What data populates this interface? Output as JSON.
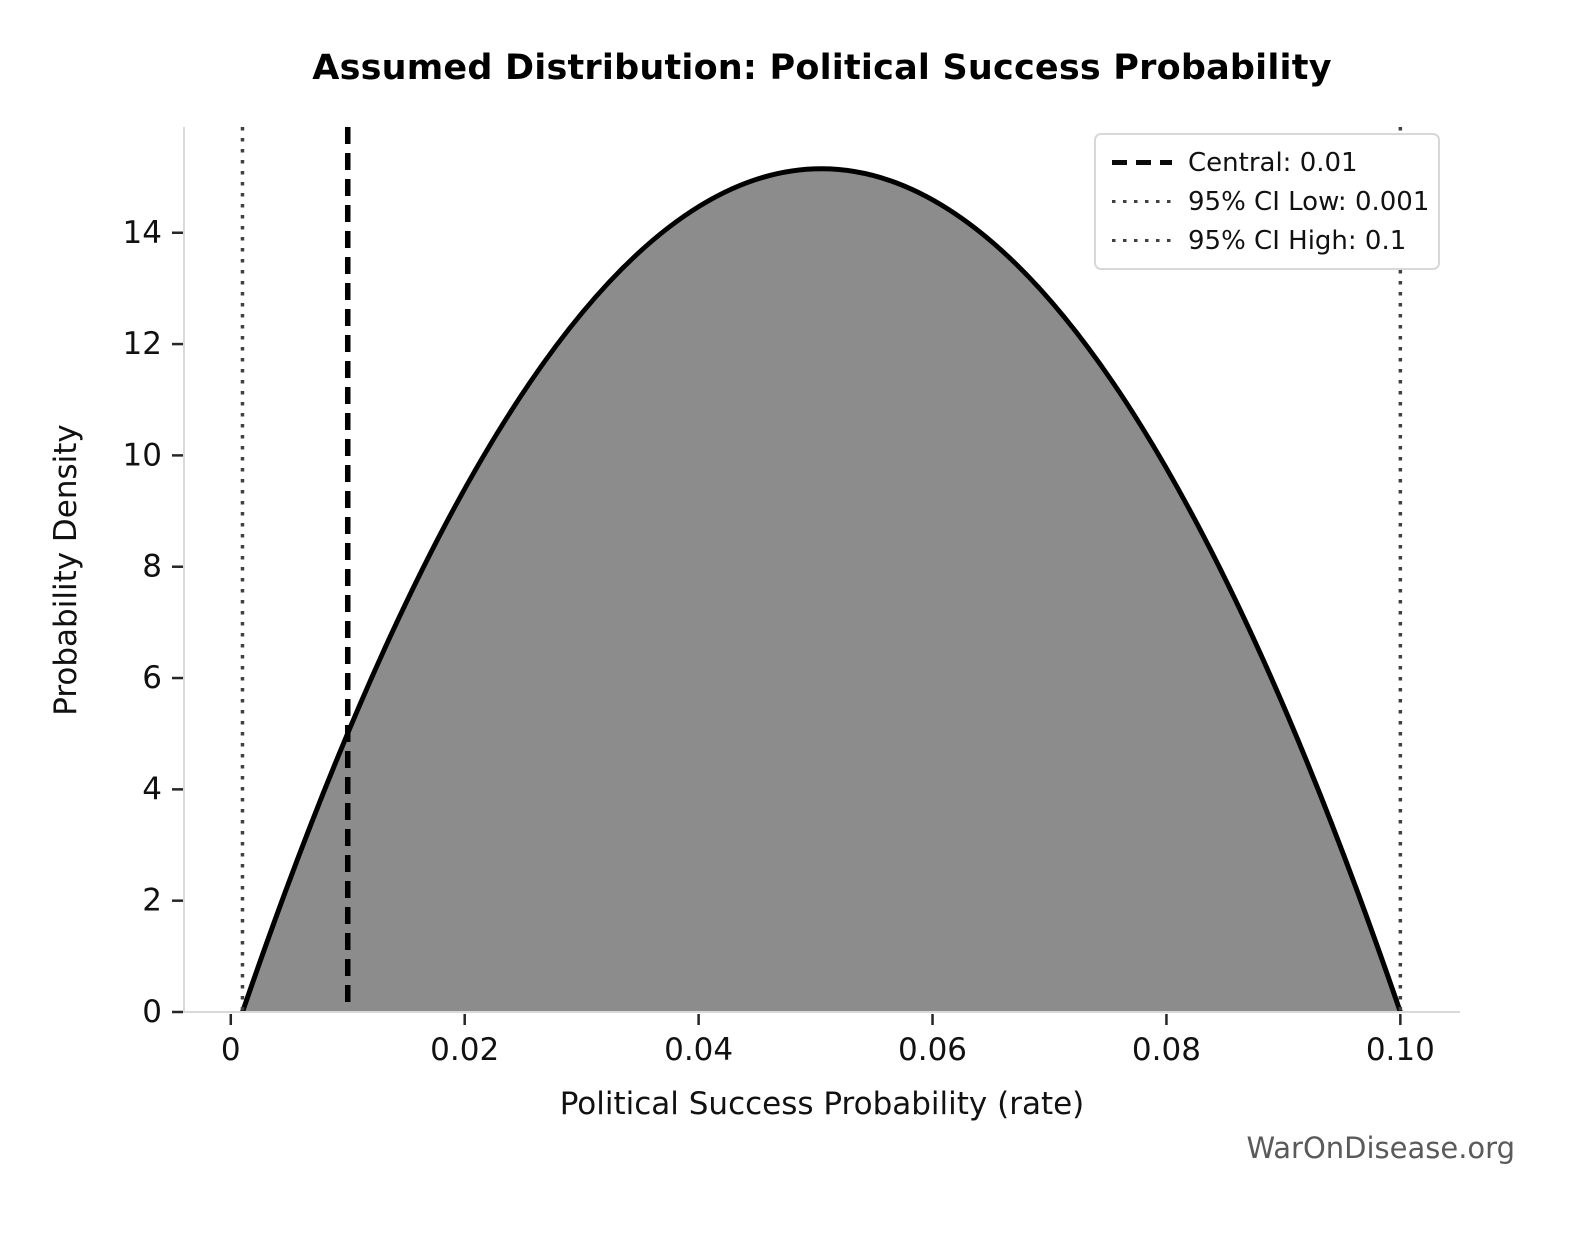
{
  "page": {
    "watermark": "WarOnDisease.org"
  },
  "chart_data": {
    "type": "area",
    "title": "Assumed Distribution: Political Success Probability",
    "xlabel": "Political Success Probability (rate)",
    "ylabel": "Probability Density",
    "xlim": [
      -0.004,
      0.1051
    ],
    "ylim": [
      0,
      15.9
    ],
    "grid": false,
    "legend_position": "upper right",
    "x_axis": {
      "ticks": [
        {
          "v": 0,
          "label": "0"
        },
        {
          "v": 0.02,
          "label": "0.02"
        },
        {
          "v": 0.04,
          "label": "0.04"
        },
        {
          "v": 0.06,
          "label": "0.06"
        },
        {
          "v": 0.08,
          "label": "0.08"
        },
        {
          "v": 0.1,
          "label": "0.10"
        }
      ]
    },
    "y_axis": {
      "ticks": [
        {
          "v": 0,
          "label": "0"
        },
        {
          "v": 2,
          "label": "2"
        },
        {
          "v": 4,
          "label": "4"
        },
        {
          "v": 6,
          "label": "6"
        },
        {
          "v": 8,
          "label": "8"
        },
        {
          "v": 10,
          "label": "10"
        },
        {
          "v": 12,
          "label": "12"
        },
        {
          "v": 14,
          "label": "14"
        }
      ]
    },
    "curve": {
      "name": "assumed-density",
      "distribution": "beta(2,2) scaled to support",
      "support": [
        0.001,
        0.1
      ],
      "peak": {
        "x": 0.0505,
        "density": 15.15
      },
      "fill_color": "#8c8c8c",
      "line_color": "#000000",
      "points": [
        [
          0.001,
          0.0
        ],
        [
          0.005,
          2.35
        ],
        [
          0.01,
          5.01
        ],
        [
          0.015,
          7.36
        ],
        [
          0.02,
          9.4
        ],
        [
          0.025,
          11.13
        ],
        [
          0.03,
          12.55
        ],
        [
          0.035,
          13.67
        ],
        [
          0.04,
          14.47
        ],
        [
          0.045,
          14.96
        ],
        [
          0.0505,
          15.15
        ],
        [
          0.055,
          15.03
        ],
        [
          0.06,
          14.59
        ],
        [
          0.065,
          13.85
        ],
        [
          0.07,
          12.8
        ],
        [
          0.075,
          11.44
        ],
        [
          0.08,
          9.77
        ],
        [
          0.085,
          7.79
        ],
        [
          0.09,
          5.5
        ],
        [
          0.095,
          2.91
        ],
        [
          0.1,
          0.0
        ]
      ]
    },
    "vlines": [
      {
        "x": 0.01,
        "style": "dashed",
        "color": "#000000",
        "label": "Central: 0.01"
      },
      {
        "x": 0.001,
        "style": "dotted",
        "color": "#404040",
        "label": "95% CI Low: 0.001"
      },
      {
        "x": 0.1,
        "style": "dotted",
        "color": "#404040",
        "label": "95% CI High: 0.1"
      }
    ]
  }
}
